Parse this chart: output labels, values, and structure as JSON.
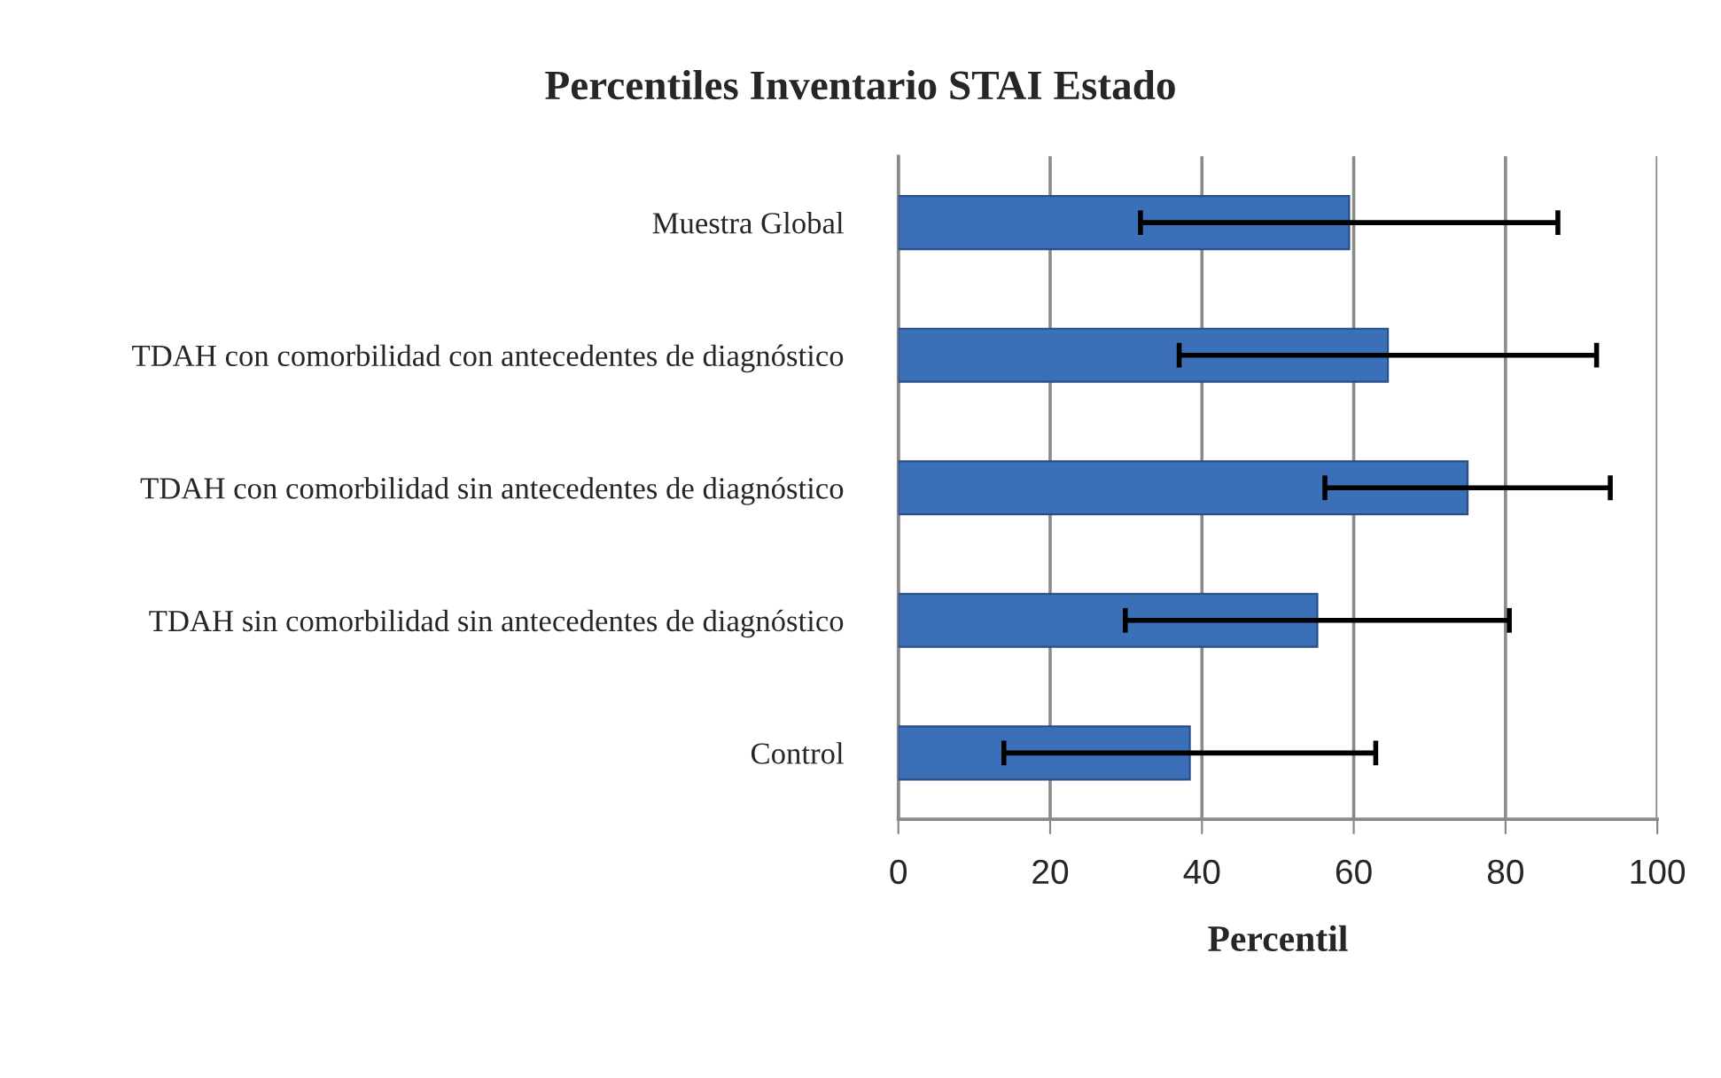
{
  "chart_data": {
    "type": "bar",
    "orientation": "horizontal",
    "title": "Percentiles Inventario STAI Estado",
    "xlabel": "Percentil",
    "categories": [
      "Muestra Global",
      "TDAH con comorbilidad con antecedentes de diagnóstico",
      "TDAH con comorbilidad sin antecedentes de diagnóstico",
      "TDAH sin comorbilidad sin antecedentes de diagnóstico",
      "Control"
    ],
    "values": [
      59.4,
      64.5,
      75.0,
      55.2,
      38.4
    ],
    "errors": [
      27.5,
      27.5,
      18.8,
      25.3,
      24.5
    ],
    "color": "#3b6fb8",
    "xlim": [
      0,
      100
    ],
    "xticks": [
      0,
      20,
      40,
      60,
      80,
      100
    ],
    "grid": "x"
  }
}
